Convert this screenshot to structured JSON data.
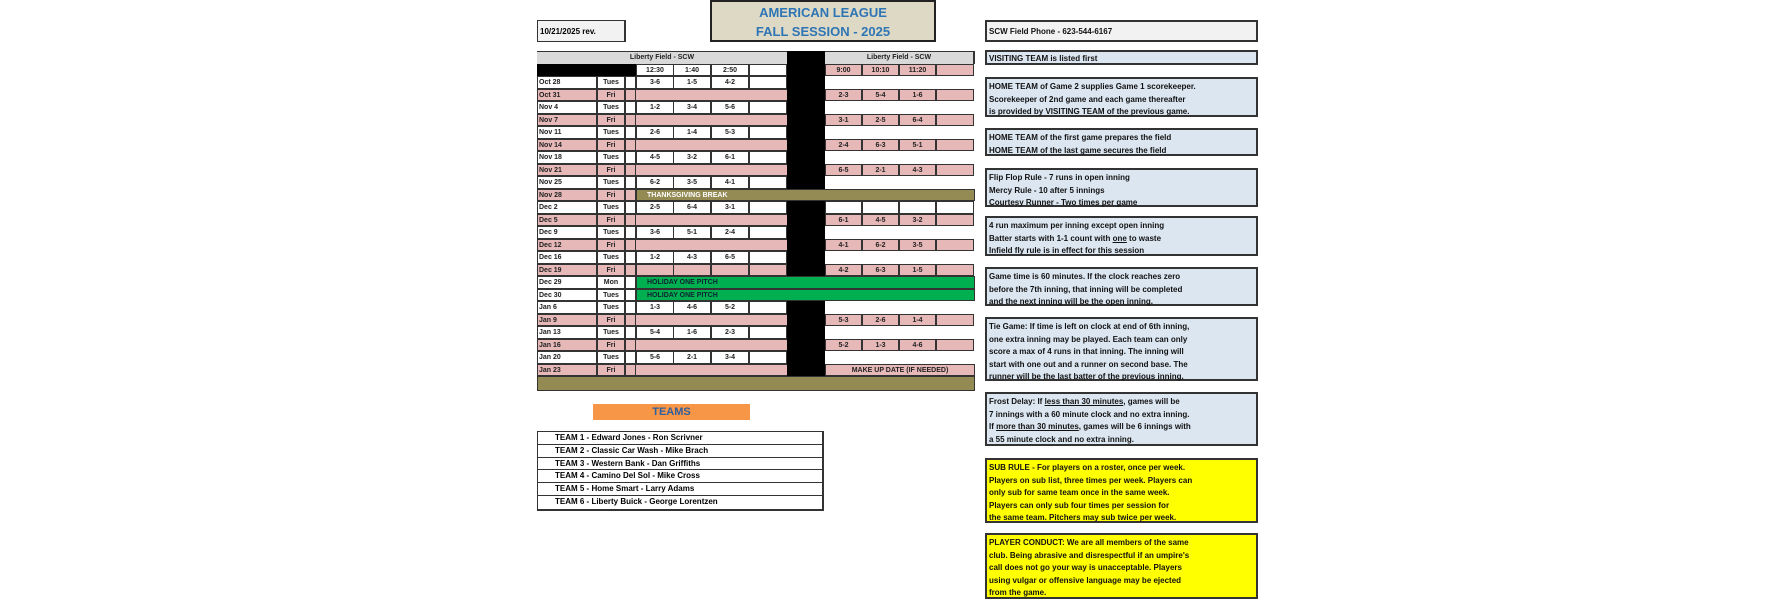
{
  "header": {
    "title_line1": "AMERICAN LEAGUE",
    "title_line2": "FALL SESSION - 2025",
    "revision": "10/21/2025 rev."
  },
  "schedule": {
    "field_left": "Liberty Field - SCW",
    "field_right": "Liberty Field - SCW",
    "times_left": [
      "12:30",
      "1:40",
      "2:50"
    ],
    "times_right": [
      "9:00",
      "10:10",
      "11:20"
    ],
    "rows": [
      {
        "date": "Oct 28",
        "day": "Tues",
        "left": [
          "3-6",
          "1-5",
          "4-2"
        ]
      },
      {
        "date": "Oct 31",
        "day": "Fri",
        "right": [
          "2-3",
          "5-4",
          "1-6"
        ]
      },
      {
        "date": "Nov 4",
        "day": "Tues",
        "left": [
          "1-2",
          "3-4",
          "5-6"
        ]
      },
      {
        "date": "Nov 7",
        "day": "Fri",
        "right": [
          "3-1",
          "2-5",
          "6-4"
        ]
      },
      {
        "date": "Nov 11",
        "day": "Tues",
        "left": [
          "2-6",
          "1-4",
          "5-3"
        ]
      },
      {
        "date": "Nov 14",
        "day": "Fri",
        "right": [
          "2-4",
          "6-3",
          "5-1"
        ]
      },
      {
        "date": "Nov 18",
        "day": "Tues",
        "left": [
          "4-5",
          "3-2",
          "6-1"
        ]
      },
      {
        "date": "Nov 21",
        "day": "Fri",
        "right": [
          "6-5",
          "2-1",
          "4-3"
        ]
      },
      {
        "date": "Nov 25",
        "day": "Tues",
        "left": [
          "6-2",
          "3-5",
          "4-1"
        ]
      },
      {
        "date": "Nov 28",
        "day": "Fri",
        "banner": "THANKSGIVING BREAK",
        "kind": "break"
      },
      {
        "date": "Dec 2",
        "day": "Tues",
        "left": [
          "2-5",
          "6-4",
          "3-1"
        ],
        "right": [
          "",
          "",
          ""
        ]
      },
      {
        "date": "Dec 5",
        "day": "Fri",
        "right": [
          "6-1",
          "4-5",
          "3-2"
        ]
      },
      {
        "date": "Dec 9",
        "day": "Tues",
        "left": [
          "3-6",
          "5-1",
          "2-4"
        ]
      },
      {
        "date": "Dec 12",
        "day": "Fri",
        "right": [
          "4-1",
          "6-2",
          "3-5"
        ]
      },
      {
        "date": "Dec 16",
        "day": "Tues",
        "left": [
          "1-2",
          "4-3",
          "6-5"
        ]
      },
      {
        "date": "Dec 19",
        "day": "Fri",
        "left": [
          "",
          "",
          ""
        ],
        "right": [
          "4-2",
          "6-3",
          "1-5"
        ]
      },
      {
        "date": "Dec 29",
        "day": "Mon",
        "banner": "HOLIDAY ONE PITCH",
        "kind": "holiday"
      },
      {
        "date": "Dec 30",
        "day": "Tues",
        "banner": "HOLIDAY ONE PITCH",
        "kind": "holiday"
      },
      {
        "date": "Jan 6",
        "day": "Tues",
        "left": [
          "1-3",
          "4-6",
          "5-2"
        ]
      },
      {
        "date": "Jan 9",
        "day": "Fri",
        "right": [
          "5-3",
          "2-6",
          "1-4"
        ]
      },
      {
        "date": "Jan 13",
        "day": "Tues",
        "left": [
          "5-4",
          "1-6",
          "2-3"
        ]
      },
      {
        "date": "Jan 16",
        "day": "Fri",
        "right": [
          "5-2",
          "1-3",
          "4-6"
        ]
      },
      {
        "date": "Jan 20",
        "day": "Tues",
        "left": [
          "5-6",
          "2-1",
          "3-4"
        ]
      },
      {
        "date": "Jan 23",
        "day": "Fri",
        "makeup": "MAKE UP DATE (IF NEEDED)"
      }
    ]
  },
  "teams": {
    "heading": "TEAMS",
    "list": [
      "TEAM 1 - Edward Jones - Ron Scrivner",
      "TEAM 2 - Classic Car Wash - Mike Brach",
      "TEAM 3 - Western Bank - Dan Griffiths",
      "TEAM 4 - Camino Del Sol - Mike Cross",
      "TEAM 5 - Home Smart - Larry Adams",
      "TEAM 6 - Liberty Buick - George Lorentzen"
    ]
  },
  "notes": {
    "phone": "SCW Field Phone - 623-544-6167",
    "visiting": "VISITING TEAM is listed first",
    "scorekeeper": [
      "HOME TEAM of Game 2 supplies Game 1 scorekeeper.",
      "Scorekeeper of 2nd game and each game thereafter",
      "is provided by VISITING TEAM of the previous game."
    ],
    "field": [
      "HOME TEAM of the first game prepares the field",
      "HOME TEAM of the last game secures the field"
    ],
    "rules1": [
      "Flip Flop Rule -  7 runs in open inning",
      "Mercy Rule - 10 after 5 innings",
      "Courtesy Runner - Two times per game"
    ],
    "rules2": {
      "l1": "4 run maximum per inning except open inning",
      "l2a": "Batter starts with 1-1 count with ",
      "l2u": "one",
      "l2b": " to waste",
      "l3": "Infield fly rule is in effect for this session"
    },
    "gametime": [
      "Game time is 60 minutes.  If the clock reaches zero",
      "before the 7th inning, that inning will be completed",
      "and the next inning will be the open inning."
    ],
    "tie": [
      "Tie Game:  If time is left on clock at end of 6th inning,",
      "one extra inning may be played.  Each team can only",
      "score a max of 4 runs in that inning.  The inning will",
      "start with one out and a runner on second base.  The",
      "runner will be the last batter of the previous inning."
    ],
    "frost": {
      "a": "Frost Delay:  If ",
      "au": "less than 30 minutes",
      "b": ", games will be",
      "l2": "7 innings with a 60 minute clock and no extra inning.",
      "c": "If ",
      "cu": "more than 30 minutes",
      "d": ", games will be 6 innings with",
      "l4": "a 55 minute clock and no extra inning."
    },
    "sub": [
      "SUB RULE - For players on a roster, once per week.",
      "Players on sub list, three times per week.  Players can",
      "only sub for same team once in the same week.",
      "Players can only sub four times per session for",
      "the same team.  Pitchers may sub twice per week."
    ],
    "conduct": [
      "PLAYER CONDUCT:  We are all members of the same",
      "club.  Being abrasive and disrespectful if an umpire's",
      "call does not go your way is unacceptable.  Players",
      "using vulgar or offensive language may be ejected",
      "from the game."
    ]
  },
  "colors": {
    "fri": "#e6b8b7",
    "break": "#948a54",
    "holiday": "#00b050",
    "notes": "#dce6f1",
    "highlight": "#ffff00",
    "teams_header": "#f79646",
    "title": "#2e75b6"
  }
}
